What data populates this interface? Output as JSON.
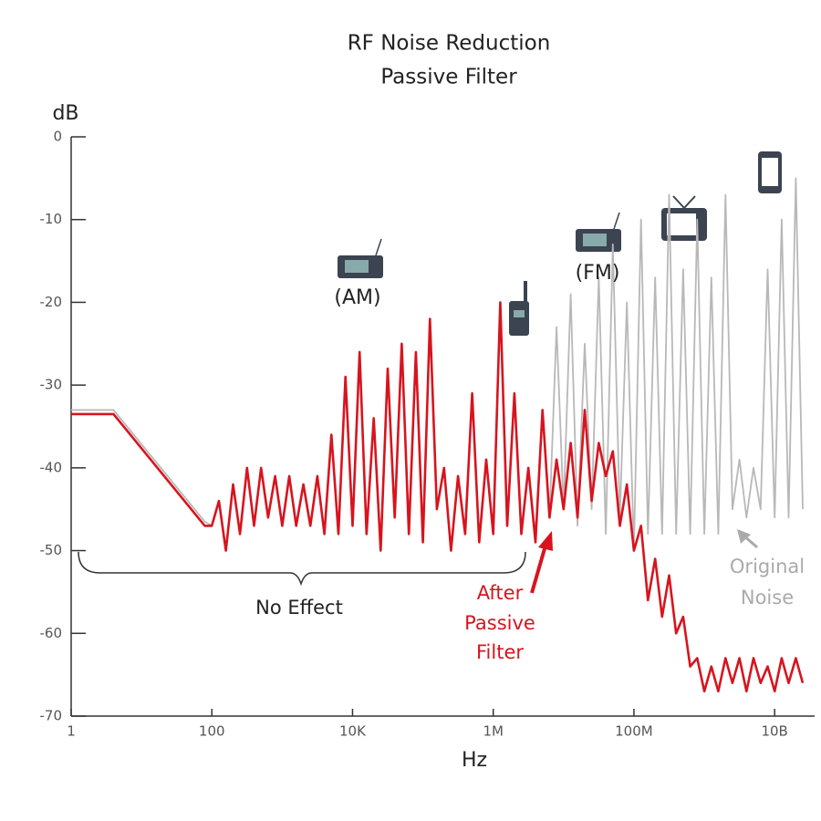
{
  "chart_data": {
    "type": "line",
    "title": "RF Noise Reduction",
    "subtitle": "Passive Filter",
    "y_label": "dB",
    "x_label": "Hz",
    "log_x": true,
    "xlim": [
      1,
      25100000000
    ],
    "ylim": [
      -70,
      0
    ],
    "xticks": [
      1,
      100,
      {
        "value": 10000,
        "label": "10K"
      },
      {
        "value": 1000000,
        "label": "1M"
      },
      {
        "value": 100000000,
        "label": "100M"
      },
      {
        "value": 10000000000,
        "label": "10B"
      }
    ],
    "yticks": [
      0,
      -10,
      -20,
      -30,
      -40,
      -50,
      -60,
      -70
    ],
    "annotations": [
      "(AM)",
      "(FM)",
      "No Effect",
      "After",
      "Passive",
      "Filter",
      "Original",
      "Noise"
    ],
    "x": [
      1,
      4,
      79.4,
      100,
      126,
      158,
      200,
      251,
      316,
      398,
      501,
      631,
      794,
      1000,
      1260,
      1580,
      2000,
      2510,
      3160,
      3980,
      5010,
      6310,
      7940,
      10000,
      12600,
      15800,
      20000,
      25100,
      31600,
      39800,
      50100,
      63100,
      79400,
      100000,
      126000,
      158000,
      200000,
      251000,
      316000,
      398000,
      501000,
      631000,
      794000,
      1000000,
      1260000,
      1580000,
      2000000,
      2510000,
      3160000,
      3980000,
      5010000,
      6310000,
      7940000,
      10000000,
      12600000,
      15800000,
      20000000,
      25100000,
      31600000,
      39800000,
      50100000,
      63100000,
      79400000,
      100000000,
      126000000,
      158000000,
      200000000,
      251000000,
      316000000,
      398000000,
      501000000,
      631000000,
      794000000,
      1000000000,
      1260000000,
      1580000000,
      2000000000,
      2510000000,
      3160000000,
      3980000000,
      5010000000,
      6310000000,
      7940000000,
      10000000000,
      12600000000,
      15800000000,
      20000000000,
      25100000000
    ],
    "series": [
      {
        "name": "Original Noise",
        "color": "#b8b8b8",
        "values": [
          -33,
          -33,
          -46.5,
          -47,
          -44,
          -50,
          -42,
          -48,
          -40,
          -47,
          -40,
          -46,
          -41,
          -47,
          -41,
          -47,
          -42,
          -47,
          -41,
          -48,
          -36,
          -48,
          -29,
          -47,
          -26,
          -48,
          -34,
          -50,
          -28,
          -46,
          -25,
          -48,
          -26,
          -49,
          -22,
          -45,
          -40,
          -50,
          -41,
          -48,
          -31,
          -49,
          -39,
          -48,
          -20,
          -47,
          -31,
          -48,
          -40,
          -48,
          -33,
          -46,
          -23,
          -45,
          -19,
          -47,
          -25,
          -45,
          -17,
          -48,
          -13,
          -46,
          -20,
          -50,
          -10,
          -48,
          -17,
          -48,
          -7,
          -48,
          -16,
          -48,
          -10,
          -48,
          -17,
          -48,
          -7,
          -45,
          -39,
          -46,
          -40,
          -45,
          -16,
          -46,
          -10,
          -46,
          -5,
          -45
        ]
      },
      {
        "name": "After Passive Filter",
        "color": "#d7141e",
        "values": [
          -33.5,
          -33.5,
          -47,
          -47,
          -44,
          -50,
          -42,
          -48,
          -40,
          -47,
          -40,
          -46,
          -41,
          -47,
          -41,
          -47,
          -42,
          -47,
          -41,
          -48,
          -36,
          -48,
          -29,
          -47,
          -26,
          -48,
          -34,
          -50,
          -28,
          -46,
          -25,
          -48,
          -26,
          -49,
          -22,
          -45,
          -40,
          -50,
          -41,
          -48,
          -31,
          -49,
          -39,
          -48,
          -20,
          -47,
          -31,
          -48,
          -40,
          -49,
          -33,
          -46,
          -39,
          -45,
          -37,
          -46,
          -33,
          -44,
          -37,
          -41,
          -38,
          -47,
          -42,
          -50,
          -47,
          -56,
          -51,
          -58,
          -53,
          -60,
          -58,
          -64,
          -63,
          -67,
          -64,
          -67,
          -63,
          -66,
          -63,
          -67,
          -63,
          -66,
          -64,
          -67,
          -63,
          -66,
          -63,
          -66
        ]
      }
    ]
  }
}
